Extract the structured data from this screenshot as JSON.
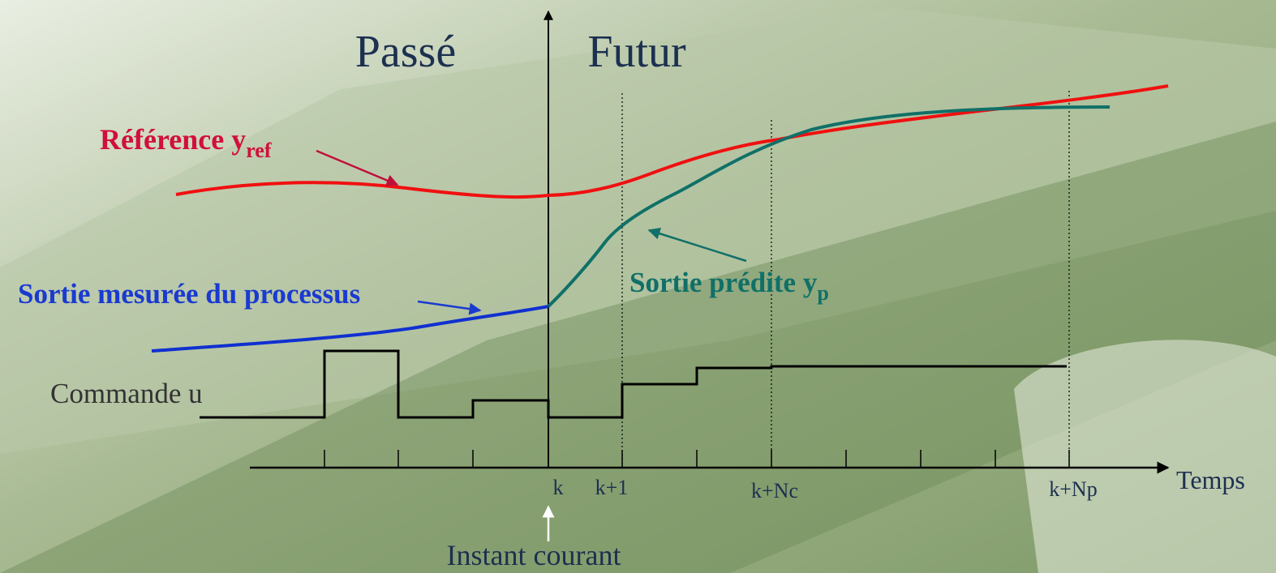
{
  "header": {
    "past": "Passé",
    "future": "Futur"
  },
  "curves": {
    "reference": {
      "label": "Référence y",
      "subscript": "ref"
    },
    "measured": {
      "label": "Sortie mesurée du processus"
    },
    "predicted": {
      "label": "Sortie prédite y",
      "subscript": "p"
    },
    "command": {
      "label": "Commande u"
    }
  },
  "axis": {
    "label": "Temps",
    "ticks": [
      "k",
      "k+1",
      "k+Nc",
      "k+Np"
    ],
    "current": "Instant courant"
  }
}
